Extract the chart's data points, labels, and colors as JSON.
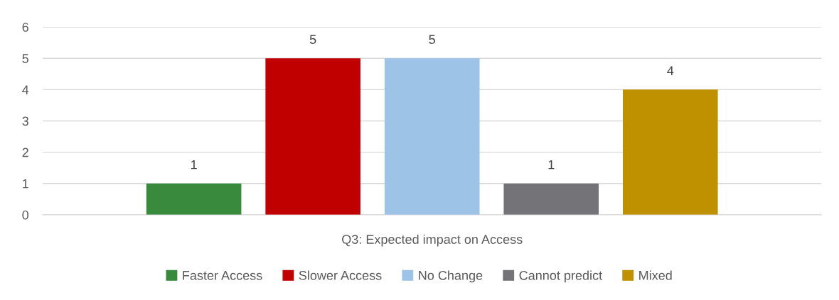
{
  "chart_data": {
    "type": "bar",
    "categories": [
      "Q3: Expected impact on Access"
    ],
    "series": [
      {
        "name": "Faster Access",
        "color": "#3a8a3e",
        "values": [
          1
        ]
      },
      {
        "name": "Slower Access",
        "color": "#c00000",
        "values": [
          5
        ]
      },
      {
        "name": "No Change",
        "color": "#9dc3e6",
        "values": [
          5
        ]
      },
      {
        "name": "Cannot predict",
        "color": "#747378",
        "values": [
          1
        ]
      },
      {
        "name": "Mixed",
        "color": "#bf9000",
        "values": [
          4
        ]
      }
    ],
    "ylim": [
      0,
      6
    ],
    "yticks": [
      0,
      1,
      2,
      3,
      4,
      5,
      6
    ],
    "grid": "y",
    "data_labels": true,
    "legend": "bottom"
  }
}
